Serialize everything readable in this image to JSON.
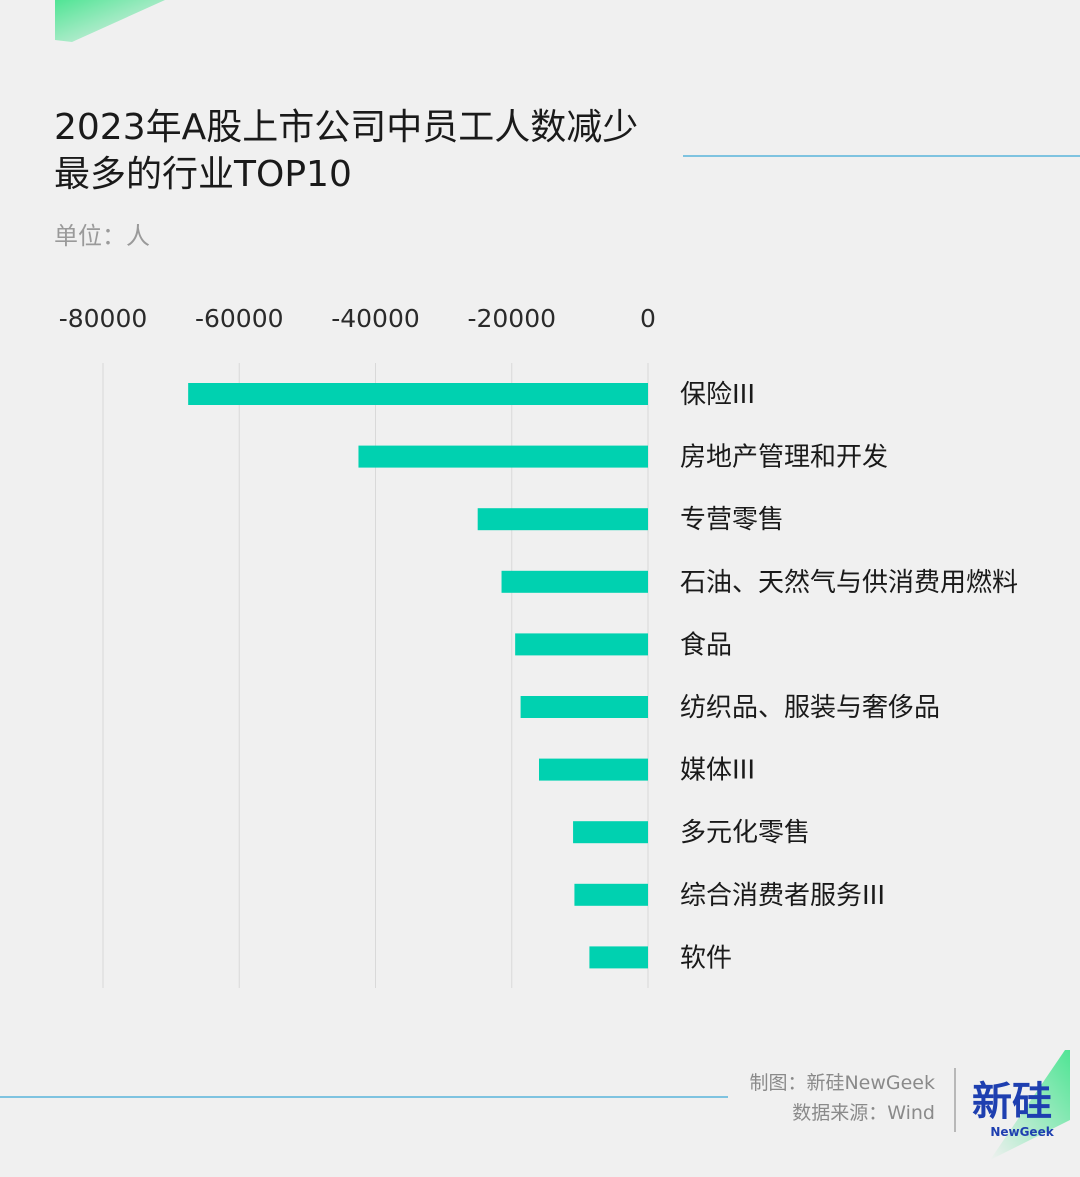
{
  "title": "2023年A股上市公司中员工人数减少最多的行业TOP10",
  "unit": "单位：人",
  "credits": {
    "maker": "制图：新硅NewGeek",
    "source": "数据来源：Wind"
  },
  "logo": {
    "main_text": "新硅",
    "sub_text": "NewGeek"
  },
  "colors": {
    "bar": "#00d1b0",
    "grid": "#d9d9d9",
    "accent_line": "#7ec3e0",
    "corner": "#3ee38a"
  },
  "chart_data": {
    "type": "bar",
    "orientation": "horizontal",
    "categories": [
      "保险III",
      "房地产管理和开发",
      "专营零售",
      "石油、天然气与供消费用燃料",
      "食品",
      "纺织品、服装与奢侈品",
      "媒体III",
      "多元化零售",
      "综合消费者服务III",
      "软件"
    ],
    "values": [
      -67500,
      -42500,
      -25000,
      -21500,
      -19500,
      -18700,
      -16000,
      -11000,
      -10800,
      -8600
    ],
    "xlim": [
      -80000,
      0
    ],
    "xticks": [
      -80000,
      -60000,
      -40000,
      -20000,
      0
    ],
    "xtick_labels": [
      "-80000",
      "-60000",
      "-40000",
      "-20000",
      "0"
    ],
    "grid": true,
    "legend": "none"
  }
}
